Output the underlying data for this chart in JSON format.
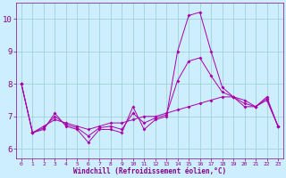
{
  "background_color": "#cceeff",
  "line_color": "#aa00aa",
  "grid_color": "#99cccc",
  "xlabel": "Windchill (Refroidissement éolien,°C)",
  "xlabel_color": "#880088",
  "tick_color": "#880088",
  "ylim": [
    5.7,
    10.5
  ],
  "xlim": [
    -0.5,
    23.5
  ],
  "yticks": [
    6,
    7,
    8,
    9,
    10
  ],
  "xticks": [
    0,
    1,
    2,
    3,
    4,
    5,
    6,
    7,
    8,
    9,
    10,
    11,
    12,
    13,
    14,
    15,
    16,
    17,
    18,
    19,
    20,
    21,
    22,
    23
  ],
  "series1_y": [
    8.0,
    6.5,
    6.6,
    7.1,
    6.7,
    6.6,
    6.2,
    6.6,
    6.6,
    6.5,
    7.3,
    6.6,
    6.9,
    7.0,
    9.0,
    10.1,
    10.2,
    9.0,
    7.9,
    7.6,
    7.3,
    7.3,
    7.6,
    6.7
  ],
  "series2_y": [
    8.0,
    6.5,
    6.7,
    6.9,
    6.8,
    6.7,
    6.6,
    6.7,
    6.8,
    6.8,
    6.9,
    7.0,
    7.0,
    7.1,
    7.2,
    7.3,
    7.4,
    7.5,
    7.6,
    7.6,
    7.5,
    7.3,
    7.5,
    6.7
  ],
  "series3_y": [
    8.0,
    6.5,
    6.65,
    7.0,
    6.75,
    6.65,
    6.4,
    6.65,
    6.7,
    6.6,
    7.1,
    6.8,
    6.95,
    7.05,
    8.1,
    8.7,
    8.8,
    8.25,
    7.75,
    7.6,
    7.4,
    7.3,
    7.55,
    6.7
  ],
  "marker_size": 2.0,
  "linewidth": 0.7
}
